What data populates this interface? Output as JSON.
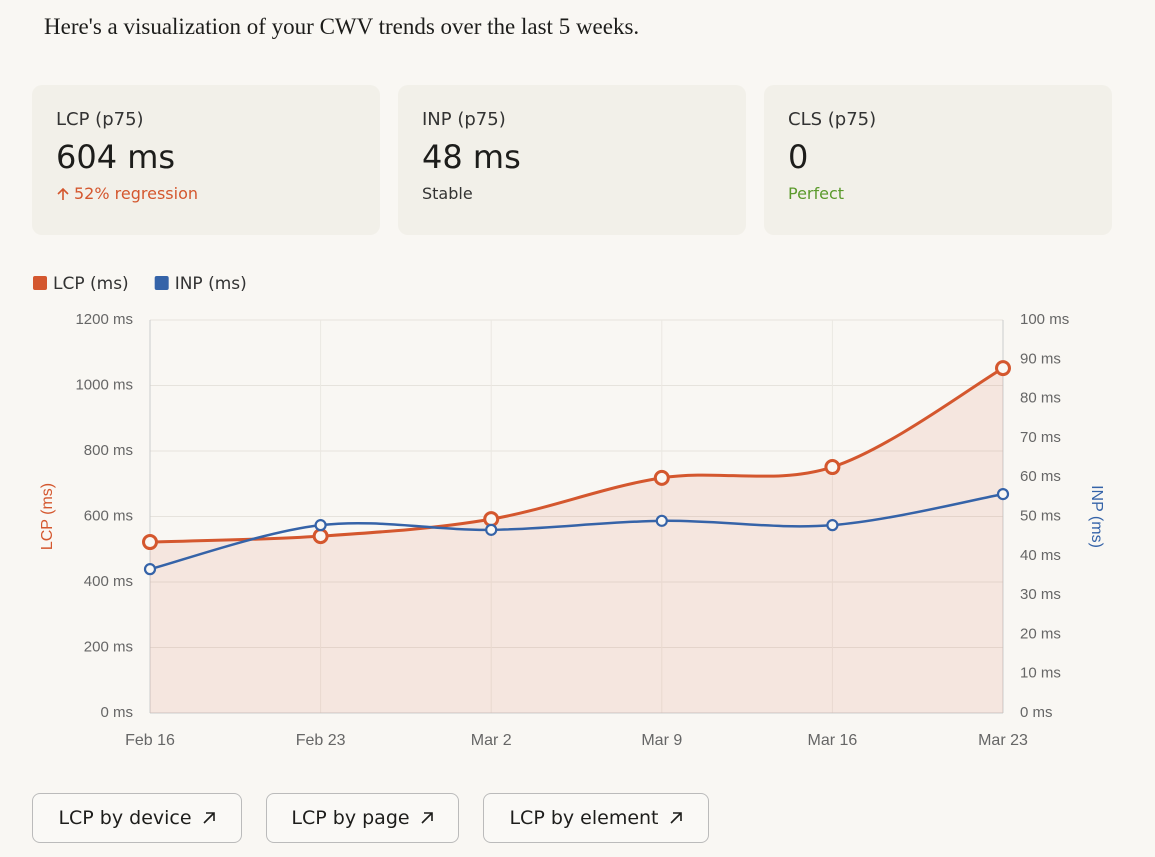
{
  "header": {
    "title": "Here's a visualization of your CWV trends over the last 5 weeks."
  },
  "cards": [
    {
      "label": "LCP (p75)",
      "value": "604 ms",
      "status": "52% regression"
    },
    {
      "label": "INP (p75)",
      "value": "48 ms",
      "status": "Stable"
    },
    {
      "label": "CLS (p75)",
      "value": "0",
      "status": "Perfect"
    }
  ],
  "chart_data": {
    "type": "line",
    "categories": [
      "Feb 16",
      "Feb 23",
      "Mar 2",
      "Mar 9",
      "Mar 16",
      "Mar 23"
    ],
    "series": [
      {
        "name": "LCP (ms)",
        "color": "#d4572e",
        "values": [
          522,
          540,
          592,
          718,
          751,
          1053
        ]
      },
      {
        "name": "INP (ms)",
        "color": "#3563a8",
        "values": [
          36.6,
          47.8,
          46.6,
          48.9,
          47.8,
          55.7
        ],
        "axis": "y2"
      }
    ],
    "ylabel": "LCP (ms)",
    "y2label": "INP (ms)",
    "ylim": [
      0,
      1200
    ],
    "yticks": [
      {
        "value": 0,
        "label": "0 ms"
      },
      {
        "value": 200,
        "label": "200 ms"
      },
      {
        "value": 400,
        "label": "400 ms"
      },
      {
        "value": 600,
        "label": "600 ms"
      },
      {
        "value": 800,
        "label": "800 ms"
      },
      {
        "value": 1000,
        "label": "1000 ms"
      },
      {
        "value": 1200,
        "label": "1200 ms"
      }
    ],
    "y2lim": [
      0,
      100
    ],
    "y2ticks": [
      {
        "value": 0,
        "label": "0 ms"
      },
      {
        "value": 10,
        "label": "10 ms"
      },
      {
        "value": 20,
        "label": "20 ms"
      },
      {
        "value": 30,
        "label": "30 ms"
      },
      {
        "value": 40,
        "label": "40 ms"
      },
      {
        "value": 50,
        "label": "50 ms"
      },
      {
        "value": 60,
        "label": "60 ms"
      },
      {
        "value": 70,
        "label": "70 ms"
      },
      {
        "value": 80,
        "label": "80 ms"
      },
      {
        "value": 90,
        "label": "90 ms"
      },
      {
        "value": 100,
        "label": "100 ms"
      }
    ],
    "grid": true,
    "legend": "top-left"
  },
  "buttons": [
    "LCP by device",
    "LCP by page",
    "LCP by element"
  ]
}
